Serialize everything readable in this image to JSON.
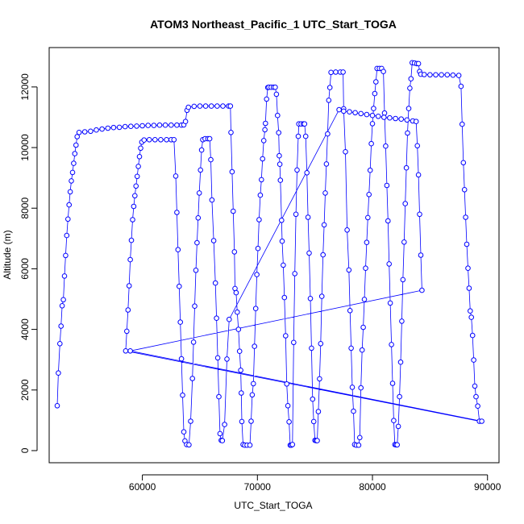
{
  "chart_data": {
    "type": "scatter",
    "title": "ATOM3 Northeast_Pacific_1 UTC_Start_TOGA",
    "xlabel": "UTC_Start_TOGA",
    "ylabel": "Altitude (m)",
    "xlim": [
      51900,
      91000
    ],
    "ylim": [
      -400,
      13300
    ],
    "xticks": [
      60000,
      70000,
      80000,
      90000
    ],
    "yticks": [
      0,
      2000,
      4000,
      6000,
      8000,
      10000,
      12000
    ],
    "grid": false,
    "legend": "none",
    "colors": {
      "series": "#0000ff"
    },
    "series": [
      {
        "marker": "open-circle",
        "line": true,
        "points": [
          [
            52600,
            1480
          ],
          [
            52700,
            2560
          ],
          [
            52830,
            3530
          ],
          [
            52930,
            4110
          ],
          [
            53030,
            4780
          ],
          [
            53130,
            4980
          ],
          [
            53230,
            5760
          ],
          [
            53330,
            6440
          ],
          [
            53430,
            7100
          ],
          [
            53530,
            7640
          ],
          [
            53630,
            8110
          ],
          [
            53730,
            8540
          ],
          [
            53830,
            8900
          ],
          [
            53930,
            9180
          ],
          [
            54030,
            9480
          ],
          [
            54130,
            9800
          ],
          [
            54230,
            10080
          ],
          [
            54330,
            10360
          ],
          [
            54500,
            10500
          ],
          [
            55000,
            10520
          ],
          [
            55500,
            10540
          ],
          [
            56000,
            10580
          ],
          [
            56500,
            10610
          ],
          [
            57000,
            10640
          ],
          [
            57500,
            10660
          ],
          [
            58000,
            10670
          ],
          [
            58500,
            10690
          ],
          [
            59000,
            10700
          ],
          [
            59500,
            10710
          ],
          [
            60000,
            10720
          ],
          [
            60500,
            10730
          ],
          [
            61000,
            10730
          ],
          [
            61500,
            10740
          ],
          [
            62000,
            10740
          ],
          [
            62500,
            10740
          ],
          [
            63000,
            10740
          ],
          [
            63400,
            10740
          ],
          [
            63600,
            10750
          ],
          [
            63750,
            10860
          ],
          [
            63880,
            11230
          ],
          [
            64000,
            11330
          ],
          [
            64500,
            11360
          ],
          [
            65000,
            11370
          ],
          [
            65500,
            11370
          ],
          [
            66000,
            11370
          ],
          [
            66500,
            11370
          ],
          [
            67000,
            11370
          ],
          [
            67500,
            11370
          ],
          [
            67650,
            11370
          ],
          [
            67700,
            10500
          ],
          [
            67800,
            9200
          ],
          [
            67900,
            7900
          ],
          [
            68000,
            6560
          ],
          [
            68050,
            5350
          ],
          [
            68150,
            5210
          ],
          [
            68250,
            4570
          ],
          [
            68350,
            4000
          ],
          [
            68450,
            3280
          ],
          [
            68550,
            2650
          ],
          [
            68600,
            1900
          ],
          [
            68650,
            960
          ],
          [
            68750,
            200
          ],
          [
            68900,
            180
          ],
          [
            69100,
            180
          ],
          [
            69350,
            180
          ],
          [
            69450,
            970
          ],
          [
            69550,
            1840
          ],
          [
            69650,
            2210
          ],
          [
            69750,
            3440
          ],
          [
            69850,
            4690
          ],
          [
            69950,
            5810
          ],
          [
            70050,
            6670
          ],
          [
            70150,
            7620
          ],
          [
            70250,
            8430
          ],
          [
            70350,
            8940
          ],
          [
            70450,
            9630
          ],
          [
            70550,
            10230
          ],
          [
            70650,
            10590
          ],
          [
            70700,
            10800
          ],
          [
            70800,
            11600
          ],
          [
            70900,
            11980
          ],
          [
            71000,
            11990
          ],
          [
            71200,
            11990
          ],
          [
            71400,
            11990
          ],
          [
            71550,
            11990
          ],
          [
            71650,
            11760
          ],
          [
            71750,
            11060
          ],
          [
            71850,
            10490
          ],
          [
            71900,
            9730
          ],
          [
            71950,
            9450
          ],
          [
            72000,
            8920
          ],
          [
            72100,
            7600
          ],
          [
            72150,
            6910
          ],
          [
            72250,
            6120
          ],
          [
            72350,
            5050
          ],
          [
            72450,
            3790
          ],
          [
            72550,
            2200
          ],
          [
            72650,
            1480
          ],
          [
            72750,
            950
          ],
          [
            72850,
            180
          ],
          [
            72950,
            180
          ],
          [
            73050,
            200
          ],
          [
            73150,
            3570
          ],
          [
            73250,
            5840
          ],
          [
            73350,
            7800
          ],
          [
            73450,
            9260
          ],
          [
            73550,
            10370
          ],
          [
            73600,
            10780
          ],
          [
            73800,
            10780
          ],
          [
            74000,
            10780
          ],
          [
            74100,
            10780
          ],
          [
            74200,
            10370
          ],
          [
            74300,
            9170
          ],
          [
            74400,
            7700
          ],
          [
            74500,
            6520
          ],
          [
            74600,
            5020
          ],
          [
            74700,
            3380
          ],
          [
            74800,
            1700
          ],
          [
            74900,
            960
          ],
          [
            75000,
            340
          ],
          [
            75100,
            330
          ],
          [
            75200,
            330
          ],
          [
            75300,
            1290
          ],
          [
            75400,
            2370
          ],
          [
            75500,
            3530
          ],
          [
            75600,
            5090
          ],
          [
            75700,
            6460
          ],
          [
            75800,
            7450
          ],
          [
            75900,
            8500
          ],
          [
            76000,
            9460
          ],
          [
            76100,
            10450
          ],
          [
            76200,
            11560
          ],
          [
            76300,
            11980
          ],
          [
            76400,
            12480
          ],
          [
            76800,
            12490
          ],
          [
            77200,
            12490
          ],
          [
            77450,
            12490
          ],
          [
            77500,
            11280
          ],
          [
            77650,
            9860
          ],
          [
            77800,
            7280
          ],
          [
            77950,
            5960
          ],
          [
            78050,
            4620
          ],
          [
            78150,
            3380
          ],
          [
            78250,
            2090
          ],
          [
            78350,
            1300
          ],
          [
            78450,
            200
          ],
          [
            78600,
            180
          ],
          [
            78800,
            180
          ],
          [
            78900,
            430
          ],
          [
            79000,
            2070
          ],
          [
            79100,
            3320
          ],
          [
            79200,
            4070
          ],
          [
            79300,
            4990
          ],
          [
            79400,
            6020
          ],
          [
            79500,
            6870
          ],
          [
            79600,
            7690
          ],
          [
            79700,
            8450
          ],
          [
            79800,
            9250
          ],
          [
            79900,
            10130
          ],
          [
            80000,
            10790
          ],
          [
            80100,
            11290
          ],
          [
            80200,
            11780
          ],
          [
            80300,
            12170
          ],
          [
            80400,
            12610
          ],
          [
            80600,
            12610
          ],
          [
            80800,
            12610
          ],
          [
            80950,
            12510
          ],
          [
            81050,
            11140
          ],
          [
            81150,
            10050
          ],
          [
            81250,
            8750
          ],
          [
            81350,
            7580
          ],
          [
            81450,
            6160
          ],
          [
            81550,
            4870
          ],
          [
            81650,
            3500
          ],
          [
            81750,
            2220
          ],
          [
            81850,
            990
          ],
          [
            81950,
            200
          ],
          [
            82050,
            190
          ],
          [
            82150,
            190
          ],
          [
            82250,
            800
          ],
          [
            82350,
            1780
          ],
          [
            82450,
            2920
          ],
          [
            82550,
            4270
          ],
          [
            82650,
            5640
          ],
          [
            82750,
            6880
          ],
          [
            82850,
            8150
          ],
          [
            82950,
            9330
          ],
          [
            83050,
            10480
          ],
          [
            83150,
            11290
          ],
          [
            83250,
            11960
          ],
          [
            83350,
            12270
          ],
          [
            83450,
            12800
          ],
          [
            83650,
            12790
          ],
          [
            83850,
            12770
          ],
          [
            84000,
            12770
          ],
          [
            84100,
            12510
          ],
          [
            84200,
            12420
          ],
          [
            84500,
            12410
          ],
          [
            85000,
            12400
          ],
          [
            85500,
            12400
          ],
          [
            86000,
            12400
          ],
          [
            86500,
            12400
          ],
          [
            87000,
            12390
          ],
          [
            87500,
            12380
          ],
          [
            87700,
            12020
          ],
          [
            87800,
            10770
          ],
          [
            87900,
            9500
          ],
          [
            88000,
            8610
          ],
          [
            88100,
            7700
          ],
          [
            88200,
            6810
          ],
          [
            88300,
            6020
          ],
          [
            88400,
            5360
          ],
          [
            88500,
            4610
          ],
          [
            88600,
            4400
          ],
          [
            88700,
            3800
          ],
          [
            88800,
            2990
          ],
          [
            88900,
            2130
          ],
          [
            89000,
            1780
          ],
          [
            89150,
            1470
          ],
          [
            89300,
            970
          ],
          [
            58550,
            3290
          ],
          [
            58650,
            3940
          ],
          [
            58750,
            4640
          ],
          [
            58850,
            5440
          ],
          [
            58950,
            6300
          ],
          [
            59050,
            6940
          ],
          [
            59150,
            7620
          ],
          [
            59250,
            8060
          ],
          [
            59350,
            8410
          ],
          [
            59450,
            8730
          ],
          [
            59550,
            9050
          ],
          [
            59650,
            9380
          ],
          [
            59750,
            9700
          ],
          [
            59850,
            9980
          ],
          [
            59950,
            10180
          ],
          [
            60150,
            10250
          ],
          [
            60600,
            10260
          ],
          [
            61100,
            10260
          ],
          [
            61600,
            10260
          ],
          [
            62100,
            10260
          ],
          [
            62500,
            10260
          ],
          [
            62750,
            10260
          ],
          [
            62900,
            9060
          ],
          [
            63000,
            7860
          ],
          [
            63100,
            6630
          ],
          [
            63200,
            5420
          ],
          [
            63300,
            4240
          ],
          [
            63400,
            3030
          ],
          [
            63500,
            1830
          ],
          [
            63600,
            620
          ],
          [
            63700,
            320
          ],
          [
            63850,
            200
          ],
          [
            64050,
            190
          ],
          [
            64200,
            970
          ],
          [
            64350,
            2380
          ],
          [
            64450,
            3580
          ],
          [
            64550,
            4770
          ],
          [
            64650,
            5950
          ],
          [
            64750,
            6860
          ],
          [
            64850,
            7680
          ],
          [
            64950,
            8500
          ],
          [
            65050,
            9260
          ],
          [
            65150,
            9920
          ],
          [
            65250,
            10260
          ],
          [
            65450,
            10290
          ],
          [
            65700,
            10290
          ],
          [
            65850,
            10290
          ],
          [
            65950,
            9600
          ],
          [
            66050,
            8270
          ],
          [
            66200,
            6930
          ],
          [
            66350,
            5530
          ],
          [
            66450,
            4370
          ],
          [
            66550,
            3060
          ],
          [
            66650,
            1780
          ],
          [
            66750,
            560
          ],
          [
            66850,
            340
          ],
          [
            66950,
            330
          ],
          [
            67150,
            860
          ],
          [
            67350,
            3020
          ],
          [
            67550,
            4330
          ],
          [
            77100,
            11250
          ],
          [
            77500,
            11200
          ],
          [
            78000,
            11180
          ],
          [
            78500,
            11150
          ],
          [
            79000,
            11120
          ],
          [
            79500,
            11090
          ],
          [
            80000,
            11060
          ],
          [
            80500,
            11030
          ],
          [
            81000,
            11000
          ],
          [
            81500,
            10980
          ],
          [
            82000,
            10960
          ],
          [
            82500,
            10940
          ],
          [
            83000,
            10910
          ],
          [
            83500,
            10880
          ],
          [
            83800,
            10860
          ],
          [
            83900,
            10060
          ],
          [
            84000,
            9100
          ],
          [
            84100,
            7800
          ],
          [
            84200,
            6450
          ],
          [
            84300,
            5290
          ],
          [
            58950,
            3290
          ],
          [
            89500,
            970
          ]
        ]
      }
    ]
  }
}
